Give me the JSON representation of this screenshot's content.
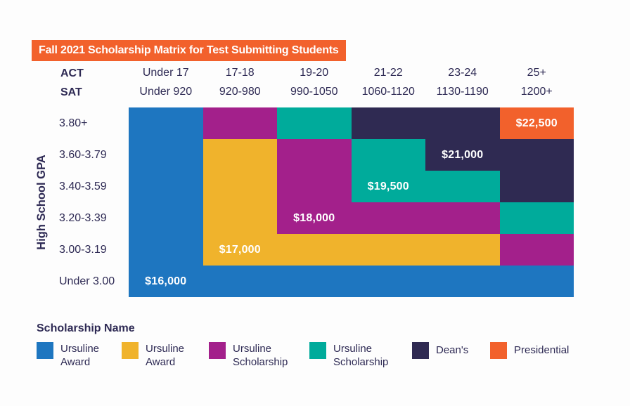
{
  "title": {
    "text": "Fall 2021 Scholarship Matrix for Test Submitting Students",
    "bg": "#F2612C",
    "color": "#FFFFFF"
  },
  "colors": {
    "blue": "#1E76C0",
    "gold": "#F0B32C",
    "magenta": "#A3208B",
    "teal": "#00AB9B",
    "navy": "#2F2A52",
    "orange": "#F2612C",
    "text": "#2E2A54"
  },
  "axes": {
    "act_label": "ACT",
    "sat_label": "SAT",
    "gpa_label": "High School GPA",
    "act_ranges": [
      "Under 17",
      "17-18",
      "19-20",
      "21-22",
      "23-24",
      "25+"
    ],
    "sat_ranges": [
      "Under 920",
      "920-980",
      "990-1050",
      "1060-1120",
      "1130-1190",
      "1200+"
    ],
    "gpa_ranges": [
      "3.80+",
      "3.60-3.79",
      "3.40-3.59",
      "3.20-3.39",
      "3.00-3.19",
      "Under 3.00"
    ]
  },
  "matrix": {
    "rows": [
      {
        "cells": [
          {
            "c": "blue"
          },
          {
            "c": "magenta"
          },
          {
            "c": "teal"
          },
          {
            "c": "navy"
          },
          {
            "c": "navy"
          },
          {
            "c": "orange",
            "amount": "$22,500"
          }
        ]
      },
      {
        "cells": [
          {
            "c": "blue"
          },
          {
            "c": "gold"
          },
          {
            "c": "magenta"
          },
          {
            "c": "teal"
          },
          {
            "c": "navy",
            "amount": "$21,000"
          },
          {
            "c": "navy"
          }
        ]
      },
      {
        "cells": [
          {
            "c": "blue"
          },
          {
            "c": "gold"
          },
          {
            "c": "magenta"
          },
          {
            "c": "teal",
            "amount": "$19,500"
          },
          {
            "c": "teal"
          },
          {
            "c": "navy"
          }
        ]
      },
      {
        "cells": [
          {
            "c": "blue"
          },
          {
            "c": "gold"
          },
          {
            "c": "magenta",
            "amount": "$18,000"
          },
          {
            "c": "magenta"
          },
          {
            "c": "magenta"
          },
          {
            "c": "teal"
          }
        ]
      },
      {
        "cells": [
          {
            "c": "blue"
          },
          {
            "c": "gold",
            "amount": "$17,000"
          },
          {
            "c": "gold"
          },
          {
            "c": "gold"
          },
          {
            "c": "gold"
          },
          {
            "c": "magenta"
          }
        ]
      },
      {
        "cells": [
          {
            "c": "blue",
            "amount": "$16,000"
          },
          {
            "c": "blue"
          },
          {
            "c": "blue"
          },
          {
            "c": "blue"
          },
          {
            "c": "blue"
          },
          {
            "c": "blue"
          }
        ]
      }
    ]
  },
  "legend": {
    "heading": "Scholarship Name",
    "items": [
      {
        "color": "blue",
        "label": "Ursuline Award"
      },
      {
        "color": "gold",
        "label": "Ursuline Award"
      },
      {
        "color": "magenta",
        "label": "Ursuline Scholarship"
      },
      {
        "color": "teal",
        "label": "Ursuline Scholarship"
      },
      {
        "color": "navy",
        "label": "Dean's"
      },
      {
        "color": "orange",
        "label": "Presidential"
      }
    ]
  },
  "chart_data": {
    "type": "heatmap",
    "title": "Fall 2021 Scholarship Matrix for Test Submitting Students",
    "x_axis": {
      "act_label": "ACT",
      "sat_label": "SAT",
      "act_categories": [
        "Under 17",
        "17-18",
        "19-20",
        "21-22",
        "23-24",
        "25+"
      ],
      "sat_categories": [
        "Under 920",
        "920-980",
        "990-1050",
        "1060-1120",
        "1130-1190",
        "1200+"
      ]
    },
    "y_axis": {
      "label": "High School GPA",
      "categories": [
        "3.80+",
        "3.60-3.79",
        "3.40-3.59",
        "3.20-3.39",
        "3.00-3.19",
        "Under 3.00"
      ]
    },
    "tiers": [
      {
        "name": "Ursuline Award",
        "amount": "$16,000",
        "color": "#1E76C0"
      },
      {
        "name": "Ursuline Award",
        "amount": "$17,000",
        "color": "#F0B32C"
      },
      {
        "name": "Ursuline Scholarship",
        "amount": "$18,000",
        "color": "#A3208B"
      },
      {
        "name": "Ursuline Scholarship",
        "amount": "$19,500",
        "color": "#00AB9B"
      },
      {
        "name": "Dean's",
        "amount": "$21,000",
        "color": "#2F2A52"
      },
      {
        "name": "Presidential",
        "amount": "$22,500",
        "color": "#F2612C"
      }
    ],
    "grid_amounts": [
      [
        "$16,000",
        "$18,000",
        "$19,500",
        "$21,000",
        "$21,000",
        "$22,500"
      ],
      [
        "$16,000",
        "$17,000",
        "$18,000",
        "$19,500",
        "$21,000",
        "$21,000"
      ],
      [
        "$16,000",
        "$17,000",
        "$18,000",
        "$19,500",
        "$19,500",
        "$21,000"
      ],
      [
        "$16,000",
        "$17,000",
        "$18,000",
        "$18,000",
        "$18,000",
        "$19,500"
      ],
      [
        "$16,000",
        "$17,000",
        "$17,000",
        "$17,000",
        "$17,000",
        "$18,000"
      ],
      [
        "$16,000",
        "$16,000",
        "$16,000",
        "$16,000",
        "$16,000",
        "$16,000"
      ]
    ],
    "visible_amount_labels": [
      {
        "gpa": "3.80+",
        "act": "25+",
        "value": "$22,500"
      },
      {
        "gpa": "3.60-3.79",
        "act": "23-24",
        "value": "$21,000"
      },
      {
        "gpa": "3.40-3.59",
        "act": "21-22",
        "value": "$19,500"
      },
      {
        "gpa": "3.20-3.39",
        "act": "19-20",
        "value": "$18,000"
      },
      {
        "gpa": "3.00-3.19",
        "act": "17-18",
        "value": "$17,000"
      },
      {
        "gpa": "Under 3.00",
        "act": "Under 17",
        "value": "$16,000"
      }
    ],
    "legend_position": "bottom"
  }
}
